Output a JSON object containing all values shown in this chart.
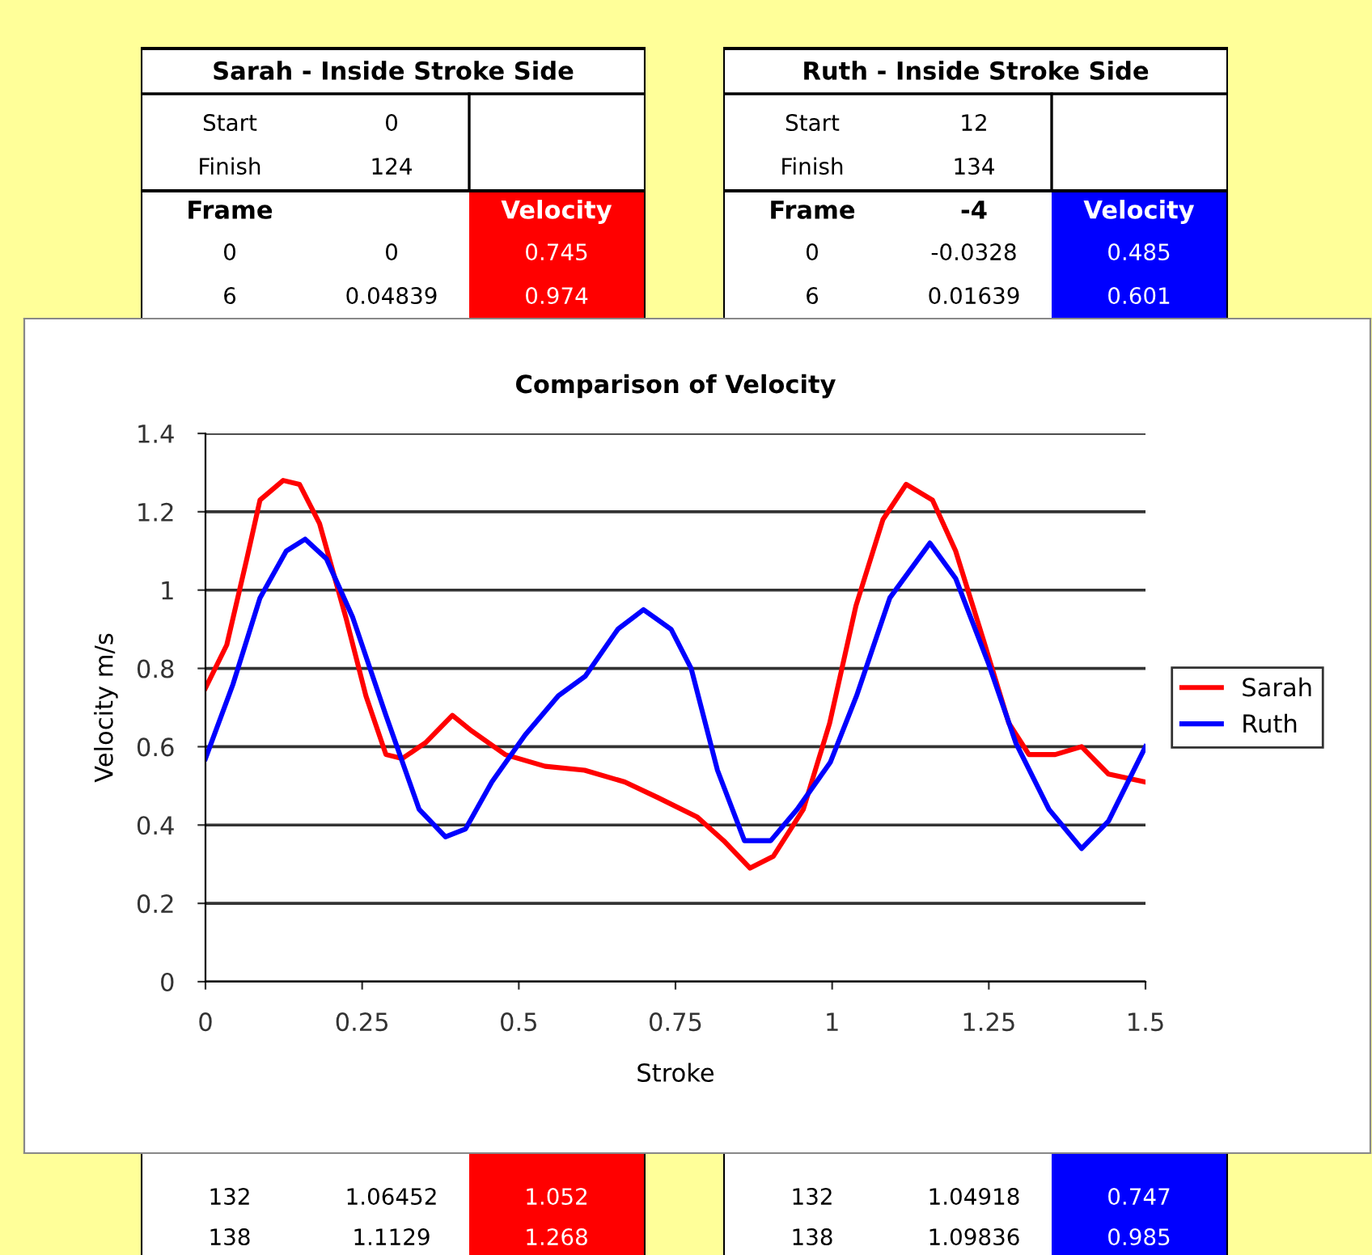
{
  "chart_data": [
    {
      "type": "other",
      "title": "Sarah - Inside Stroke Side",
      "color": "#ff0000",
      "annotations": [
        "Start",
        "0",
        "Finish",
        "124",
        "Frame",
        "Velocity",
        "0",
        "0",
        "0.745",
        "6",
        "0.04839",
        "0.974",
        "132",
        "1.06452",
        "1.052",
        "138",
        "1.1129",
        "1.268"
      ]
    },
    {
      "type": "other",
      "title": "Ruth - Inside Stroke Side",
      "color": "#0000ff",
      "annotations": [
        "Start",
        "12",
        "Finish",
        "134",
        "Frame",
        "-4",
        "Velocity",
        "0",
        "-0.0328",
        "0.485",
        "6",
        "0.01639",
        "0.601",
        "132",
        "1.04918",
        "0.747",
        "138",
        "1.09836",
        "0.985"
      ]
    },
    {
      "type": "line",
      "title": "Comparison of Velocity",
      "xlabel": "Stroke",
      "ylabel": "Velocity m/s",
      "xlim": [
        0,
        1.5
      ],
      "xticks": [
        0,
        0.25,
        0.5,
        0.75,
        1,
        1.25,
        1.5
      ],
      "ylim": [
        0,
        1.4
      ],
      "yticks": [
        0,
        0.2,
        0.4,
        0.6,
        0.8,
        1,
        1.2,
        1.4
      ],
      "grid": "y",
      "legend": "right",
      "marker": "none",
      "line_style": "solid",
      "series": [
        {
          "name": "Sarah",
          "color": "#ff0000",
          "x": [
            0,
            0.034,
            0.066,
            0.087,
            0.124,
            0.15,
            0.182,
            0.224,
            0.256,
            0.288,
            0.314,
            0.351,
            0.394,
            0.425,
            0.478,
            0.542,
            0.605,
            0.669,
            0.722,
            0.785,
            0.827,
            0.869,
            0.906,
            0.954,
            0.996,
            1.038,
            1.081,
            1.118,
            1.16,
            1.197,
            1.24,
            1.282,
            1.314,
            1.356,
            1.398,
            1.441,
            1.5
          ],
          "values": [
            0.75,
            0.86,
            1.08,
            1.23,
            1.28,
            1.27,
            1.17,
            0.93,
            0.73,
            0.58,
            0.57,
            0.61,
            0.68,
            0.64,
            0.58,
            0.55,
            0.54,
            0.51,
            0.47,
            0.42,
            0.36,
            0.29,
            0.32,
            0.44,
            0.66,
            0.96,
            1.18,
            1.27,
            1.23,
            1.1,
            0.88,
            0.66,
            0.58,
            0.58,
            0.6,
            0.53,
            0.51
          ]
        },
        {
          "name": "Ruth",
          "color": "#0000ff",
          "x": [
            0,
            0.044,
            0.087,
            0.129,
            0.159,
            0.193,
            0.235,
            0.288,
            0.341,
            0.383,
            0.415,
            0.457,
            0.51,
            0.563,
            0.606,
            0.658,
            0.699,
            0.743,
            0.775,
            0.817,
            0.86,
            0.902,
            0.944,
            0.997,
            1.039,
            1.092,
            1.156,
            1.197,
            1.25,
            1.293,
            1.346,
            1.398,
            1.441,
            1.5
          ],
          "values": [
            0.57,
            0.76,
            0.98,
            1.1,
            1.13,
            1.08,
            0.93,
            0.68,
            0.44,
            0.37,
            0.39,
            0.51,
            0.63,
            0.73,
            0.78,
            0.9,
            0.95,
            0.9,
            0.8,
            0.54,
            0.36,
            0.36,
            0.44,
            0.56,
            0.73,
            0.98,
            1.12,
            1.03,
            0.81,
            0.61,
            0.44,
            0.34,
            0.41,
            0.6
          ]
        }
      ]
    }
  ]
}
